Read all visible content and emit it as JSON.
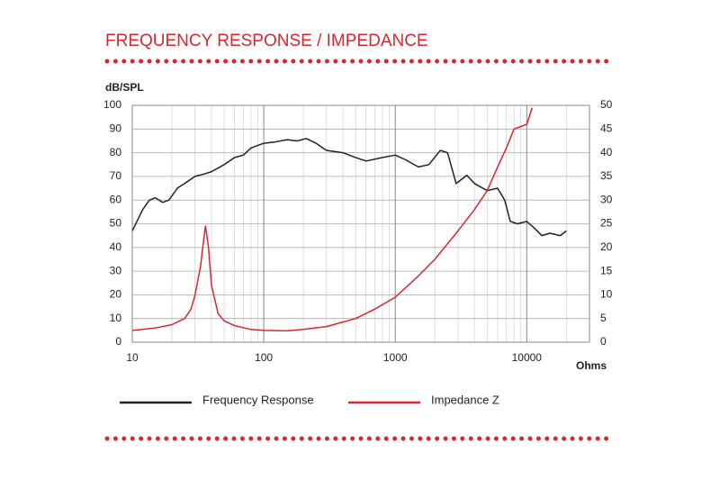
{
  "chart_data": {
    "type": "line",
    "title": "FREQUENCY RESPONSE / IMPEDANCE",
    "y_label": "dB/SPL",
    "x_label": "Ohms",
    "x_log": true,
    "grid": true,
    "xlim": [
      10,
      30000
    ],
    "xticks": [
      10,
      100,
      1000,
      10000
    ],
    "ylim": [
      0,
      100
    ],
    "yticks": [
      0,
      10,
      20,
      30,
      40,
      50,
      60,
      70,
      80,
      90,
      100
    ],
    "y2lim": [
      0,
      50
    ],
    "y2ticks": [
      0,
      5,
      10,
      15,
      20,
      25,
      30,
      35,
      40,
      45,
      50
    ],
    "series": [
      {
        "name": "Frequency Response",
        "color": "#222222",
        "x": [
          10,
          12,
          13.5,
          15,
          17,
          19,
          22,
          25,
          30,
          35,
          40,
          50,
          60,
          70,
          80,
          100,
          120,
          150,
          180,
          210,
          250,
          300,
          400,
          500,
          600,
          800,
          1000,
          1200,
          1500,
          1800,
          2200,
          2500,
          2900,
          3500,
          4000,
          5000,
          6000,
          6800,
          7500,
          8500,
          10000,
          11000,
          12000,
          13000,
          15000,
          18000,
          20000
        ],
        "values": [
          47,
          56,
          60,
          61,
          59,
          60,
          65,
          67,
          70,
          71,
          72,
          75,
          78,
          79,
          82,
          84,
          84.5,
          85.5,
          85,
          86,
          84,
          81,
          80,
          78,
          76.5,
          78,
          79,
          77,
          74,
          75,
          81,
          80,
          67,
          70.5,
          67,
          64,
          65,
          60,
          51,
          50,
          51,
          49,
          47,
          45,
          46,
          45,
          47
        ]
      },
      {
        "name": "Impedance Z",
        "color": "#d9262f",
        "axis": "y2",
        "x": [
          10,
          15,
          20,
          25,
          28,
          30,
          33,
          35,
          36,
          38,
          40,
          45,
          50,
          60,
          80,
          100,
          150,
          200,
          300,
          500,
          700,
          1000,
          1500,
          2000,
          3000,
          4000,
          5000,
          6000,
          7000,
          8000,
          10000,
          11000
        ],
        "values": [
          2.5,
          3,
          3.7,
          5,
          7,
          10,
          16,
          22,
          24.5,
          20,
          12,
          6,
          4.5,
          3.5,
          2.7,
          2.5,
          2.4,
          2.7,
          3.3,
          5,
          7,
          9.5,
          14,
          17.5,
          23.5,
          28,
          32,
          37,
          41,
          45,
          46,
          49.5
        ]
      }
    ]
  }
}
